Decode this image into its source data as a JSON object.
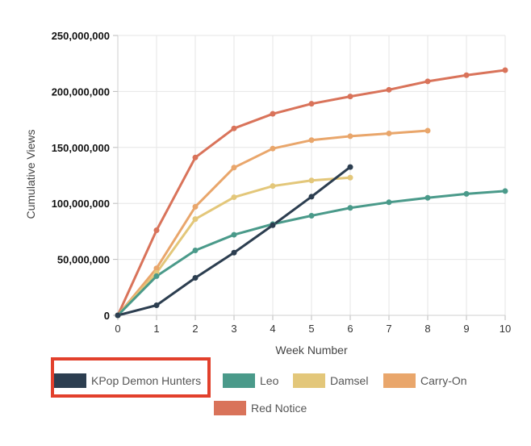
{
  "chart_data": {
    "type": "line",
    "xlabel": "Week Number",
    "ylabel": "Cumulative Views",
    "xlim": [
      0,
      10
    ],
    "ylim": [
      0,
      250000000
    ],
    "x_ticks": [
      "0",
      "1",
      "2",
      "3",
      "4",
      "5",
      "6",
      "7",
      "8",
      "9",
      "10"
    ],
    "y_ticks": [
      "0",
      "50,000,000",
      "100,000,000",
      "150,000,000",
      "200,000,000",
      "250,000,000"
    ],
    "grid": true,
    "legend_position": "bottom",
    "series": [
      {
        "name": "KPop Demon Hunters",
        "color": "#2c3e50",
        "x": [
          0,
          1,
          2,
          3,
          4,
          5,
          6
        ],
        "values": [
          0,
          9000000,
          33500000,
          56000000,
          80500000,
          106000000,
          132500000
        ]
      },
      {
        "name": "Leo",
        "color": "#4a9a8a",
        "x": [
          0,
          1,
          2,
          3,
          4,
          5,
          6,
          7,
          8,
          9,
          10
        ],
        "values": [
          0,
          35000000,
          58000000,
          72000000,
          81500000,
          89000000,
          96000000,
          101000000,
          105000000,
          108500000,
          111000000
        ]
      },
      {
        "name": "Damsel",
        "color": "#e3c77a",
        "x": [
          0,
          1,
          2,
          3,
          4,
          5,
          6
        ],
        "values": [
          0,
          38000000,
          86000000,
          105500000,
          115500000,
          120500000,
          123000000
        ]
      },
      {
        "name": "Carry-On",
        "color": "#e9a66b",
        "x": [
          0,
          1,
          2,
          3,
          4,
          5,
          6,
          7,
          8
        ],
        "values": [
          0,
          42000000,
          97000000,
          132000000,
          149000000,
          156500000,
          160000000,
          162500000,
          165000000
        ]
      },
      {
        "name": "Red Notice",
        "color": "#d9735a",
        "x": [
          0,
          1,
          2,
          3,
          4,
          5,
          6,
          7,
          8,
          9,
          10
        ],
        "values": [
          0,
          76000000,
          141000000,
          167000000,
          180000000,
          189000000,
          195500000,
          201500000,
          209000000,
          214500000,
          219000000
        ]
      }
    ],
    "highlighted_legend_entry": "KPop Demon Hunters",
    "highlight_color": "#e2402c"
  }
}
